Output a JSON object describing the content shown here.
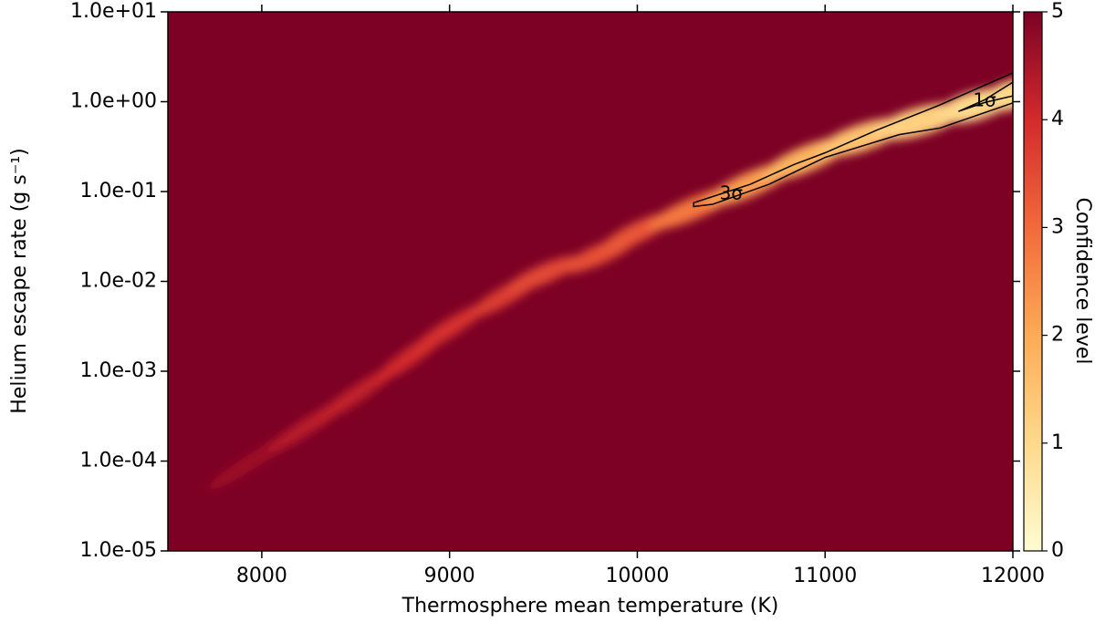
{
  "chart_data": {
    "type": "heatmap",
    "xlabel": "Thermosphere mean temperature (K)",
    "ylabel": "Helium escape rate (g s⁻¹)",
    "xlim": [
      7500,
      12000
    ],
    "xticks": [
      8000,
      9000,
      10000,
      11000,
      12000
    ],
    "ylim": [
      1e-05,
      10
    ],
    "log_y": true,
    "yticks": [
      {
        "value": 1e-05,
        "label": "1.0e-05"
      },
      {
        "value": 0.0001,
        "label": "1.0e-04"
      },
      {
        "value": 0.001,
        "label": "1.0e-03"
      },
      {
        "value": 0.01,
        "label": "1.0e-02"
      },
      {
        "value": 0.1,
        "label": "1.0e-01"
      },
      {
        "value": 1,
        "label": "1.0e+00"
      },
      {
        "value": 10,
        "label": "1.0e+01"
      }
    ],
    "colorbar": {
      "label": "Confidence level",
      "clim": [
        0,
        5
      ],
      "ticks": [
        0,
        1,
        2,
        3,
        4,
        5
      ],
      "colormap": [
        "#fffcd2",
        "#fed98b",
        "#fdab56",
        "#f26a3b",
        "#d32a2c",
        "#7d0125"
      ]
    },
    "background_level": 5,
    "ridge": {
      "x": [
        7950,
        8250,
        8500,
        8800,
        9000,
        9300,
        9500,
        9800,
        10000,
        10300,
        10600,
        10900,
        11200,
        11500,
        11800,
        12000
      ],
      "y": [
        0.0001,
        0.00025,
        0.00055,
        0.0015,
        0.003,
        0.007,
        0.012,
        0.02,
        0.035,
        0.065,
        0.12,
        0.23,
        0.4,
        0.6,
        0.9,
        1.2
      ],
      "level": [
        4.6,
        4.3,
        4.2,
        4.0,
        3.9,
        3.7,
        3.5,
        3.4,
        3.3,
        2.8,
        2.2,
        1.8,
        1.5,
        1.2,
        1.0,
        1.0
      ]
    },
    "contours": [
      {
        "label": "3σ",
        "x": [
          10300,
          10600,
          10835,
          11000,
          11272,
          11600,
          12000,
          12000,
          11613,
          11394,
          11000,
          10700,
          10400,
          10300
        ],
        "y": [
          0.075,
          0.12,
          0.2,
          0.27,
          0.48,
          0.9,
          2.1,
          0.97,
          0.51,
          0.43,
          0.24,
          0.12,
          0.072,
          0.068
        ]
      },
      {
        "label": "1σ",
        "x": [
          11710,
          11850,
          12000,
          12000,
          11850,
          11710
        ],
        "y": [
          0.78,
          1.05,
          1.65,
          1.16,
          0.98,
          0.78
        ]
      }
    ]
  }
}
